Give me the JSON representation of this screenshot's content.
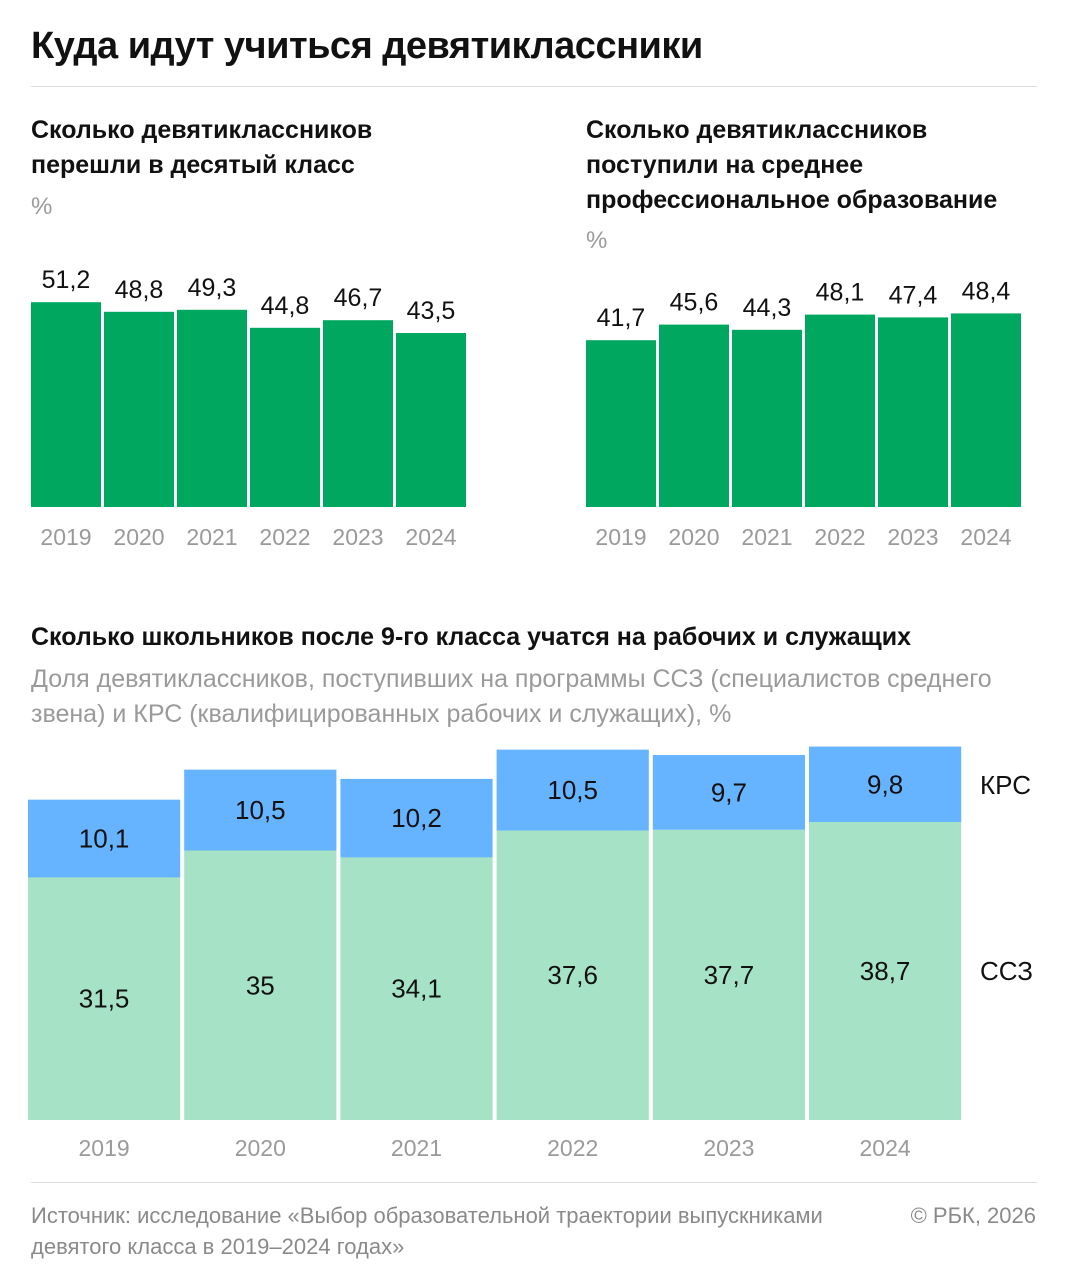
{
  "title": "Куда идут учиться девятиклассники",
  "charts": {
    "left": {
      "title": "Сколько девятиклассников перешли в десятый класс",
      "unit": "%"
    },
    "right": {
      "title": "Сколько девятиклассников поступили на среднее профессиональное образование",
      "unit": "%"
    },
    "bottom": {
      "title": "Сколько школьников после 9-го класса учатся на рабочих и служащих",
      "note": "Доля девятиклассников, поступивших на программы ССЗ (специалистов среднего звена) и КРС (квалифицированных рабочих и служащих), %"
    }
  },
  "chart_data": [
    {
      "type": "bar",
      "title": "Сколько девятиклассников перешли в десятый класс",
      "ylabel": "%",
      "categories": [
        "2019",
        "2020",
        "2021",
        "2022",
        "2023",
        "2024"
      ],
      "values": [
        51.2,
        48.8,
        49.3,
        44.8,
        46.7,
        43.5
      ],
      "value_labels": [
        "51,2",
        "48,8",
        "49,3",
        "44,8",
        "46,7",
        "43,5"
      ],
      "color": "#00a85f",
      "ylim": [
        0,
        52
      ]
    },
    {
      "type": "bar",
      "title": "Сколько девятиклассников поступили на среднее профессиональное образование",
      "ylabel": "%",
      "categories": [
        "2019",
        "2020",
        "2021",
        "2022",
        "2023",
        "2024"
      ],
      "values": [
        41.7,
        45.6,
        44.3,
        48.1,
        47.4,
        48.4
      ],
      "value_labels": [
        "41,7",
        "45,6",
        "44,3",
        "48,1",
        "47,4",
        "48,4"
      ],
      "color": "#00a85f",
      "ylim": [
        0,
        52
      ]
    },
    {
      "type": "bar",
      "stacked": true,
      "title": "Сколько школьников после 9-го класса учатся на рабочих и служащих",
      "ylabel": "%",
      "categories": [
        "2019",
        "2020",
        "2021",
        "2022",
        "2023",
        "2024"
      ],
      "series": [
        {
          "name": "ССЗ",
          "values": [
            31.5,
            35,
            34.1,
            37.6,
            37.7,
            38.7
          ],
          "value_labels": [
            "31,5",
            "35",
            "34,1",
            "37,6",
            "37,7",
            "38,7"
          ],
          "color": "#a6e3c6"
        },
        {
          "name": "КРС",
          "values": [
            10.1,
            10.5,
            10.2,
            10.5,
            9.7,
            9.8
          ],
          "value_labels": [
            "10,1",
            "10,5",
            "10,2",
            "10,5",
            "9,7",
            "9,8"
          ],
          "color": "#66b3ff"
        }
      ]
    }
  ],
  "footer": {
    "source": "Источник: исследование «Выбор образовательной траектории выпускниками девятого класса в 2019–2024 годах»",
    "copyright": "© РБК, 2026"
  }
}
